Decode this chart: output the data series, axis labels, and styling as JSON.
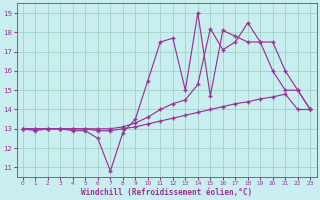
{
  "xlabel": "Windchill (Refroidissement éolien,°C)",
  "bg_color": "#c8eef0",
  "line_color": "#993399",
  "grid_color": "#99ccbb",
  "xlim": [
    -0.5,
    23.5
  ],
  "ylim": [
    10.5,
    19.5
  ],
  "xticks": [
    0,
    1,
    2,
    3,
    4,
    5,
    6,
    7,
    8,
    9,
    10,
    11,
    12,
    13,
    14,
    15,
    16,
    17,
    18,
    19,
    20,
    21,
    22,
    23
  ],
  "yticks": [
    11,
    12,
    13,
    14,
    15,
    16,
    17,
    18,
    19
  ],
  "s1_x": [
    0,
    1,
    2,
    3,
    4,
    5,
    6,
    7,
    8,
    9,
    10,
    11,
    12,
    13,
    14,
    15,
    16,
    17,
    18,
    19,
    20,
    21,
    22,
    23
  ],
  "s1_y": [
    13.0,
    12.9,
    13.0,
    13.0,
    12.9,
    12.9,
    12.5,
    10.8,
    12.8,
    13.5,
    15.5,
    17.5,
    17.7,
    15.0,
    19.0,
    14.7,
    18.1,
    17.8,
    17.5,
    17.5,
    16.0,
    15.0,
    15.0,
    14.0
  ],
  "s2_x": [
    0,
    1,
    2,
    3,
    4,
    5,
    6,
    7,
    8,
    9,
    10,
    11,
    12,
    13,
    14,
    15,
    16,
    17,
    18,
    19,
    20,
    21,
    22,
    23
  ],
  "s2_y": [
    13.0,
    13.0,
    13.0,
    13.0,
    13.0,
    13.0,
    12.9,
    12.9,
    13.0,
    13.1,
    13.25,
    13.4,
    13.55,
    13.7,
    13.85,
    14.0,
    14.15,
    14.3,
    14.4,
    14.55,
    14.65,
    14.8,
    14.0,
    14.0
  ],
  "s3_x": [
    0,
    1,
    2,
    3,
    4,
    5,
    6,
    7,
    8,
    9,
    10,
    11,
    12,
    13,
    14,
    15,
    16,
    17,
    18,
    19,
    20,
    21,
    22,
    23
  ],
  "s3_y": [
    13.0,
    13.0,
    13.0,
    13.0,
    13.0,
    13.0,
    13.0,
    13.0,
    13.1,
    13.3,
    13.6,
    14.0,
    14.3,
    14.5,
    15.3,
    18.2,
    17.1,
    17.5,
    18.5,
    17.5,
    17.5,
    16.0,
    15.0,
    14.0
  ]
}
